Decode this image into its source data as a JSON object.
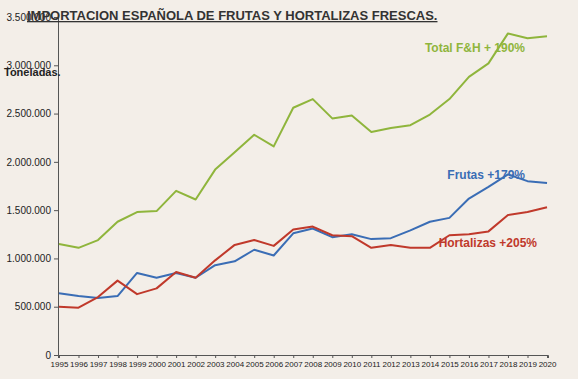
{
  "chart_data": {
    "type": "line",
    "title": "IMPORTACION ESPAÑOLA DE FRUTAS Y HORTALIZAS FRESCAS.",
    "ylabel": "Toneladas.",
    "categories": [
      "1995",
      "1996",
      "1997",
      "1998",
      "1999",
      "2000",
      "2001",
      "2002",
      "2003",
      "2004",
      "2005",
      "2006",
      "2007",
      "2008",
      "2009",
      "2010",
      "2011",
      "2012",
      "2013",
      "2014",
      "2015",
      "2016",
      "2017",
      "2018",
      "2019",
      "2020"
    ],
    "series": [
      {
        "name": "Total F&H + 190%",
        "color": "#8fb53c",
        "values": [
          1150000,
          1110000,
          1190000,
          1380000,
          1480000,
          1490000,
          1700000,
          1610000,
          1920000,
          2100000,
          2280000,
          2160000,
          2560000,
          2650000,
          2450000,
          2480000,
          2310000,
          2350000,
          2380000,
          2490000,
          2650000,
          2880000,
          3020000,
          3330000,
          3280000,
          3300000
        ]
      },
      {
        "name": "Frutas +179%",
        "color": "#3a6db5",
        "values": [
          640000,
          610000,
          590000,
          610000,
          850000,
          800000,
          850000,
          800000,
          930000,
          970000,
          1090000,
          1030000,
          1260000,
          1310000,
          1220000,
          1250000,
          1200000,
          1210000,
          1290000,
          1380000,
          1420000,
          1620000,
          1740000,
          1870000,
          1800000,
          1780000
        ]
      },
      {
        "name": "Hortalizas +205%",
        "color": "#c0392b",
        "values": [
          500000,
          490000,
          600000,
          770000,
          630000,
          690000,
          860000,
          800000,
          980000,
          1140000,
          1190000,
          1130000,
          1300000,
          1330000,
          1240000,
          1230000,
          1110000,
          1140000,
          1110000,
          1110000,
          1240000,
          1250000,
          1280000,
          1450000,
          1480000,
          1530000
        ]
      }
    ],
    "ylim": [
      0,
      3500000
    ],
    "yticks": [
      0,
      {
        "value": 500000,
        "label": "500.000"
      },
      {
        "value": 1000000,
        "label": "1.000.000"
      },
      {
        "value": 1500000,
        "label": "1.500.000"
      },
      {
        "value": 2000000,
        "label": "2.000.000"
      },
      {
        "value": 2500000,
        "label": "2.500.000"
      },
      {
        "value": 3000000,
        "label": "3.000.000"
      },
      {
        "value": 3500000,
        "label": "3.500.000"
      }
    ],
    "grid": false,
    "legend": "none"
  }
}
